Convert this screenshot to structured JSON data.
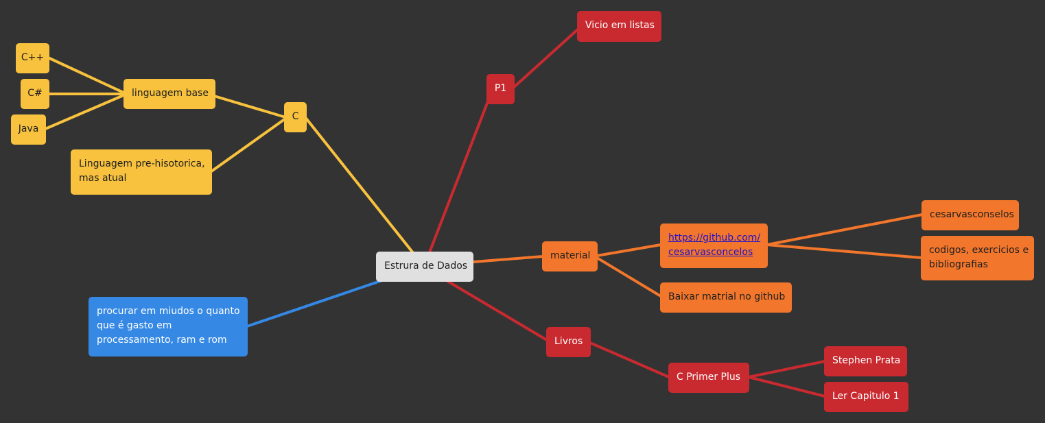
{
  "colors": {
    "background": "#333333",
    "yellow": "#f8c23e",
    "red": "#c92a30",
    "orange": "#f2762b",
    "blue": "#3588e4",
    "root": "#e0e0e0"
  },
  "mindmap": {
    "root": {
      "label": "Estrura de Dados"
    },
    "c_branch": {
      "label": "C",
      "linguagem_base": {
        "label": "linguagem base",
        "children": [
          "C++",
          "C#",
          "Java"
        ]
      },
      "pre_historica": {
        "line1": "Linguagem pre-hisotorica,",
        "line2": "mas atual"
      }
    },
    "p1_branch": {
      "label": "P1",
      "children": [
        "Vicio em listas"
      ]
    },
    "material_branch": {
      "label": "material",
      "link": {
        "line1": "https://github.com/",
        "line2": "cesarvasconcelos",
        "children": {
          "user": "cesarvasconselos",
          "codigos_line1": "codigos, exercicios e",
          "codigos_line2": "bibliografias"
        }
      },
      "baixar": "Baixar matrial no github"
    },
    "livros_branch": {
      "label": "Livros",
      "book": {
        "label": "C Primer Plus",
        "children": [
          "Stephen Prata",
          "Ler Capitulo 1"
        ]
      }
    },
    "note": {
      "line1": "procurar em miudos o quanto",
      "line2": "que é gasto em",
      "line3": "processamento, ram e rom"
    }
  }
}
